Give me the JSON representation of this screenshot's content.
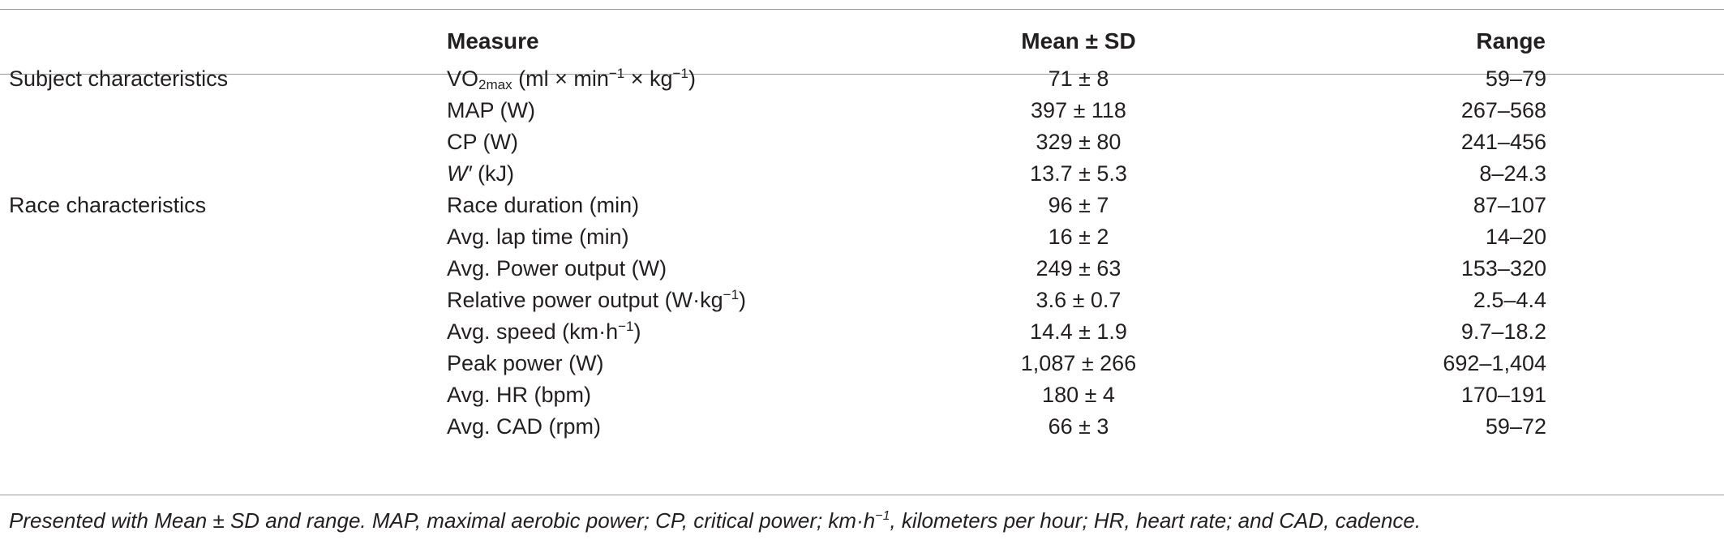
{
  "table": {
    "headers": {
      "measure": "Measure",
      "mean_sd": "Mean ± SD",
      "range": "Range"
    },
    "rows": [
      {
        "group": "Subject characteristics",
        "measure": "VO",
        "measure_sub": "2max",
        "measure_rest": " (ml × min",
        "sup1": "−1",
        "measure_rest2": " × kg",
        "sup2": "−1",
        "measure_end": ")",
        "mean_sd": "71 ± 8",
        "range": "59–79"
      },
      {
        "group": "",
        "measure": "MAP (W)",
        "mean_sd": "397 ± 118",
        "range": "267–568"
      },
      {
        "group": "",
        "measure": "CP (W)",
        "mean_sd": "329 ± 80",
        "range": "241–456"
      },
      {
        "group": "",
        "measure_italic": "W′",
        "measure": " (kJ)",
        "mean_sd": "13.7 ± 5.3",
        "range": "8–24.3"
      },
      {
        "group": "Race characteristics",
        "measure": "Race duration (min)",
        "mean_sd": "96 ± 7",
        "range": "87–107"
      },
      {
        "group": "",
        "measure": "Avg. lap time (min)",
        "mean_sd": "16 ± 2",
        "range": "14–20"
      },
      {
        "group": "",
        "measure": "Avg. Power output (W)",
        "mean_sd": "249 ± 63",
        "range": "153–320"
      },
      {
        "group": "",
        "measure": "Relative power output (W·kg",
        "sup1": "−1",
        "measure_end": ")",
        "mean_sd": "3.6 ± 0.7",
        "range": "2.5–4.4"
      },
      {
        "group": "",
        "measure": "Avg. speed (km·h",
        "sup1": "−1",
        "measure_end": ")",
        "mean_sd": "14.4 ± 1.9",
        "range": "9.7–18.2"
      },
      {
        "group": "",
        "measure": "Peak power (W)",
        "mean_sd": "1,087 ± 266",
        "range": "692–1,404"
      },
      {
        "group": "",
        "measure": "Avg. HR (bpm)",
        "mean_sd": "180 ± 4",
        "range": "170–191"
      },
      {
        "group": "",
        "measure": "Avg. CAD (rpm)",
        "mean_sd": "66 ± 3",
        "range": "59–72"
      }
    ]
  },
  "footnote": {
    "part1": "Presented with Mean ± SD and range. MAP, maximal aerobic power; CP, critical power; km·h",
    "sup": "−1",
    "part2": ", kilometers per hour; HR, heart rate; and CAD, cadence."
  }
}
